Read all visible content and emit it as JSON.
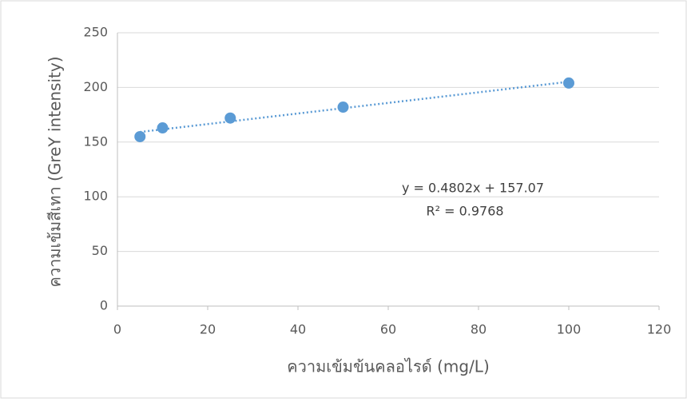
{
  "chart_data": {
    "type": "scatter",
    "x_label": "ความเข้มข้นคลอไรด์ (mg/L)",
    "y_label": "ความเข้มสีเทา  (GreY intensity)",
    "annotations": [
      "y = 0.4802x + 157.07",
      "R² = 0.9768"
    ],
    "series": [
      {
        "color": "#5b9bd5",
        "x": [
          5,
          10,
          25,
          50,
          100
        ],
        "values": [
          155,
          163,
          172,
          182,
          204
        ]
      }
    ],
    "trendline": true,
    "xlim": [
      0,
      120
    ],
    "xticks": [
      0,
      20,
      40,
      60,
      80,
      100,
      120
    ],
    "ylim": [
      0,
      250
    ],
    "yticks": [
      0,
      50,
      100,
      150,
      200,
      250
    ],
    "grid": true
  }
}
